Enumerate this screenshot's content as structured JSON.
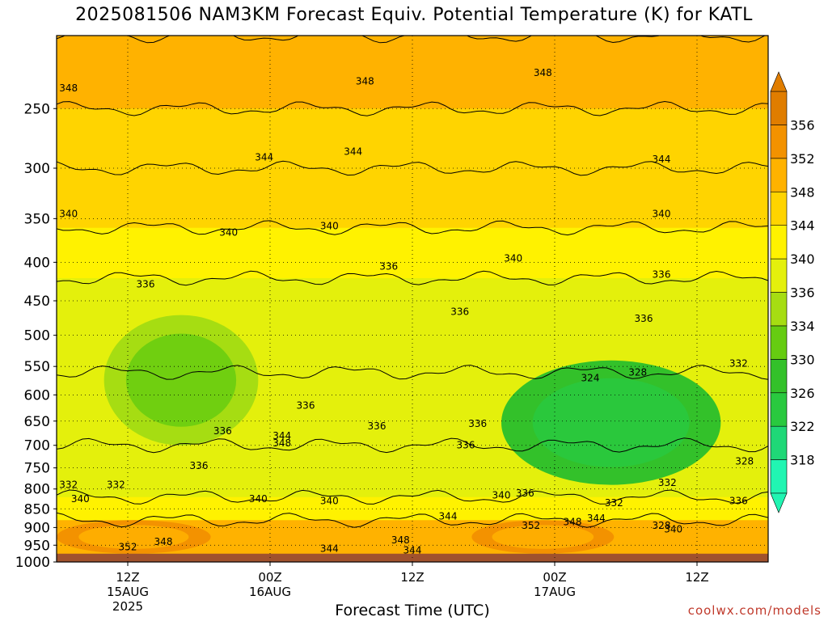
{
  "chart_data": {
    "type": "heatmap",
    "title": "2025081506 NAM3KM Forecast Equiv. Potential Temperature (K) for KATL",
    "xlabel": "Forecast Time (UTC)",
    "ylabel": "",
    "y_scale": "log-pressure",
    "ylim": [
      1000,
      200
    ],
    "y_ticks": [
      250,
      300,
      350,
      400,
      450,
      500,
      550,
      600,
      650,
      700,
      750,
      800,
      850,
      900,
      950,
      1000
    ],
    "x_ticks": [
      {
        "hours": 6,
        "line1": "12Z",
        "line2": "15AUG",
        "line3": "2025"
      },
      {
        "hours": 18,
        "line1": "00Z",
        "line2": "16AUG",
        "line3": ""
      },
      {
        "hours": 30,
        "line1": "12Z",
        "line2": "",
        "line3": ""
      },
      {
        "hours": 42,
        "line1": "00Z",
        "line2": "17AUG",
        "line3": ""
      },
      {
        "hours": 54,
        "line1": "12Z",
        "line2": "",
        "line3": ""
      }
    ],
    "xlim_hours": [
      0,
      60
    ],
    "grid": "dotted",
    "colorbar": {
      "levels": [
        318,
        322,
        326,
        330,
        334,
        336,
        340,
        344,
        348,
        352,
        356
      ],
      "colors": [
        "#21f5b2",
        "#1fd877",
        "#29c93f",
        "#33c12a",
        "#66cc11",
        "#a6dd12",
        "#e4f00c",
        "#fff200",
        "#ffd400",
        "#ffb200",
        "#f39200",
        "#e07d00"
      ],
      "label_levels": [
        318,
        322,
        326,
        330,
        334,
        336,
        340,
        344,
        348,
        352,
        356
      ]
    },
    "bands": [
      {
        "from": 250,
        "to": 200,
        "theta_e": 348
      },
      {
        "from": 300,
        "to": 250,
        "theta_e": 346
      },
      {
        "from": 360,
        "to": 300,
        "theta_e": 344
      },
      {
        "from": 420,
        "to": 360,
        "theta_e": 341
      },
      {
        "from": 560,
        "to": 420,
        "theta_e": 337
      },
      {
        "from": 700,
        "to": 560,
        "theta_e": 336
      },
      {
        "from": 820,
        "to": 700,
        "theta_e": 338
      },
      {
        "from": 880,
        "to": 820,
        "theta_e": 343
      },
      {
        "from": 975,
        "to": 880,
        "theta_e": 350
      }
    ],
    "regions": [
      {
        "name": "moist-pocket-16aug",
        "h0": 37.5,
        "h1": 56,
        "p_top": 540,
        "p_bot": 790,
        "theta_e": 326
      },
      {
        "name": "dry-pocket-15aug",
        "h0": 4,
        "h1": 17,
        "p_top": 470,
        "p_bot": 700,
        "theta_e": 334
      },
      {
        "name": "surface-warm-15aug",
        "h0": 0,
        "h1": 13,
        "p_top": 880,
        "p_bot": 975,
        "theta_e": 352
      },
      {
        "name": "surface-warm-17aug",
        "h0": 35,
        "h1": 47,
        "p_top": 880,
        "p_bot": 975,
        "theta_e": 352
      }
    ],
    "contour_labels": [
      {
        "text": "348",
        "hours": 1,
        "p": 235
      },
      {
        "text": "348",
        "hours": 26,
        "p": 230
      },
      {
        "text": "348",
        "hours": 41,
        "p": 224
      },
      {
        "text": "344",
        "hours": 17.5,
        "p": 290
      },
      {
        "text": "344",
        "hours": 25,
        "p": 285
      },
      {
        "text": "344",
        "hours": 51,
        "p": 292
      },
      {
        "text": "340",
        "hours": 1,
        "p": 345
      },
      {
        "text": "340",
        "hours": 14.5,
        "p": 365
      },
      {
        "text": "340",
        "hours": 23,
        "p": 358
      },
      {
        "text": "340",
        "hours": 38.5,
        "p": 395
      },
      {
        "text": "340",
        "hours": 51,
        "p": 345
      },
      {
        "text": "336",
        "hours": 7.5,
        "p": 428
      },
      {
        "text": "336",
        "hours": 28,
        "p": 405
      },
      {
        "text": "336",
        "hours": 34,
        "p": 465
      },
      {
        "text": "336",
        "hours": 51,
        "p": 415
      },
      {
        "text": "336",
        "hours": 49.5,
        "p": 475
      },
      {
        "text": "336",
        "hours": 21,
        "p": 620
      },
      {
        "text": "336",
        "hours": 14,
        "p": 670
      },
      {
        "text": "336",
        "hours": 27,
        "p": 660
      },
      {
        "text": "336",
        "hours": 35.5,
        "p": 655
      },
      {
        "text": "336",
        "hours": 34.5,
        "p": 700
      },
      {
        "text": "336",
        "hours": 12,
        "p": 745
      },
      {
        "text": "336",
        "hours": 39.5,
        "p": 810
      },
      {
        "text": "336",
        "hours": 57.5,
        "p": 830
      },
      {
        "text": "344",
        "hours": 19,
        "p": 680
      },
      {
        "text": "348",
        "hours": 19,
        "p": 695
      },
      {
        "text": "332",
        "hours": 57.5,
        "p": 545
      },
      {
        "text": "324",
        "hours": 45,
        "p": 570
      },
      {
        "text": "328",
        "hours": 49,
        "p": 560
      },
      {
        "text": "328",
        "hours": 58,
        "p": 735
      },
      {
        "text": "332",
        "hours": 1,
        "p": 790
      },
      {
        "text": "332",
        "hours": 5,
        "p": 790
      },
      {
        "text": "332",
        "hours": 51.5,
        "p": 785
      },
      {
        "text": "332",
        "hours": 47,
        "p": 835
      },
      {
        "text": "328",
        "hours": 51,
        "p": 895
      },
      {
        "text": "340",
        "hours": 2,
        "p": 825
      },
      {
        "text": "340",
        "hours": 17,
        "p": 825
      },
      {
        "text": "340",
        "hours": 23,
        "p": 830
      },
      {
        "text": "340",
        "hours": 37.5,
        "p": 815
      },
      {
        "text": "340",
        "hours": 52,
        "p": 905
      },
      {
        "text": "344",
        "hours": 33,
        "p": 870
      },
      {
        "text": "344",
        "hours": 45.5,
        "p": 875
      },
      {
        "text": "344",
        "hours": 23,
        "p": 960
      },
      {
        "text": "344",
        "hours": 30,
        "p": 965
      },
      {
        "text": "348",
        "hours": 9,
        "p": 940
      },
      {
        "text": "348",
        "hours": 29,
        "p": 935
      },
      {
        "text": "348",
        "hours": 43.5,
        "p": 885
      },
      {
        "text": "352",
        "hours": 6,
        "p": 955
      },
      {
        "text": "352",
        "hours": 40,
        "p": 895
      }
    ]
  },
  "footer": {
    "credit": "coolwx.com/models"
  }
}
